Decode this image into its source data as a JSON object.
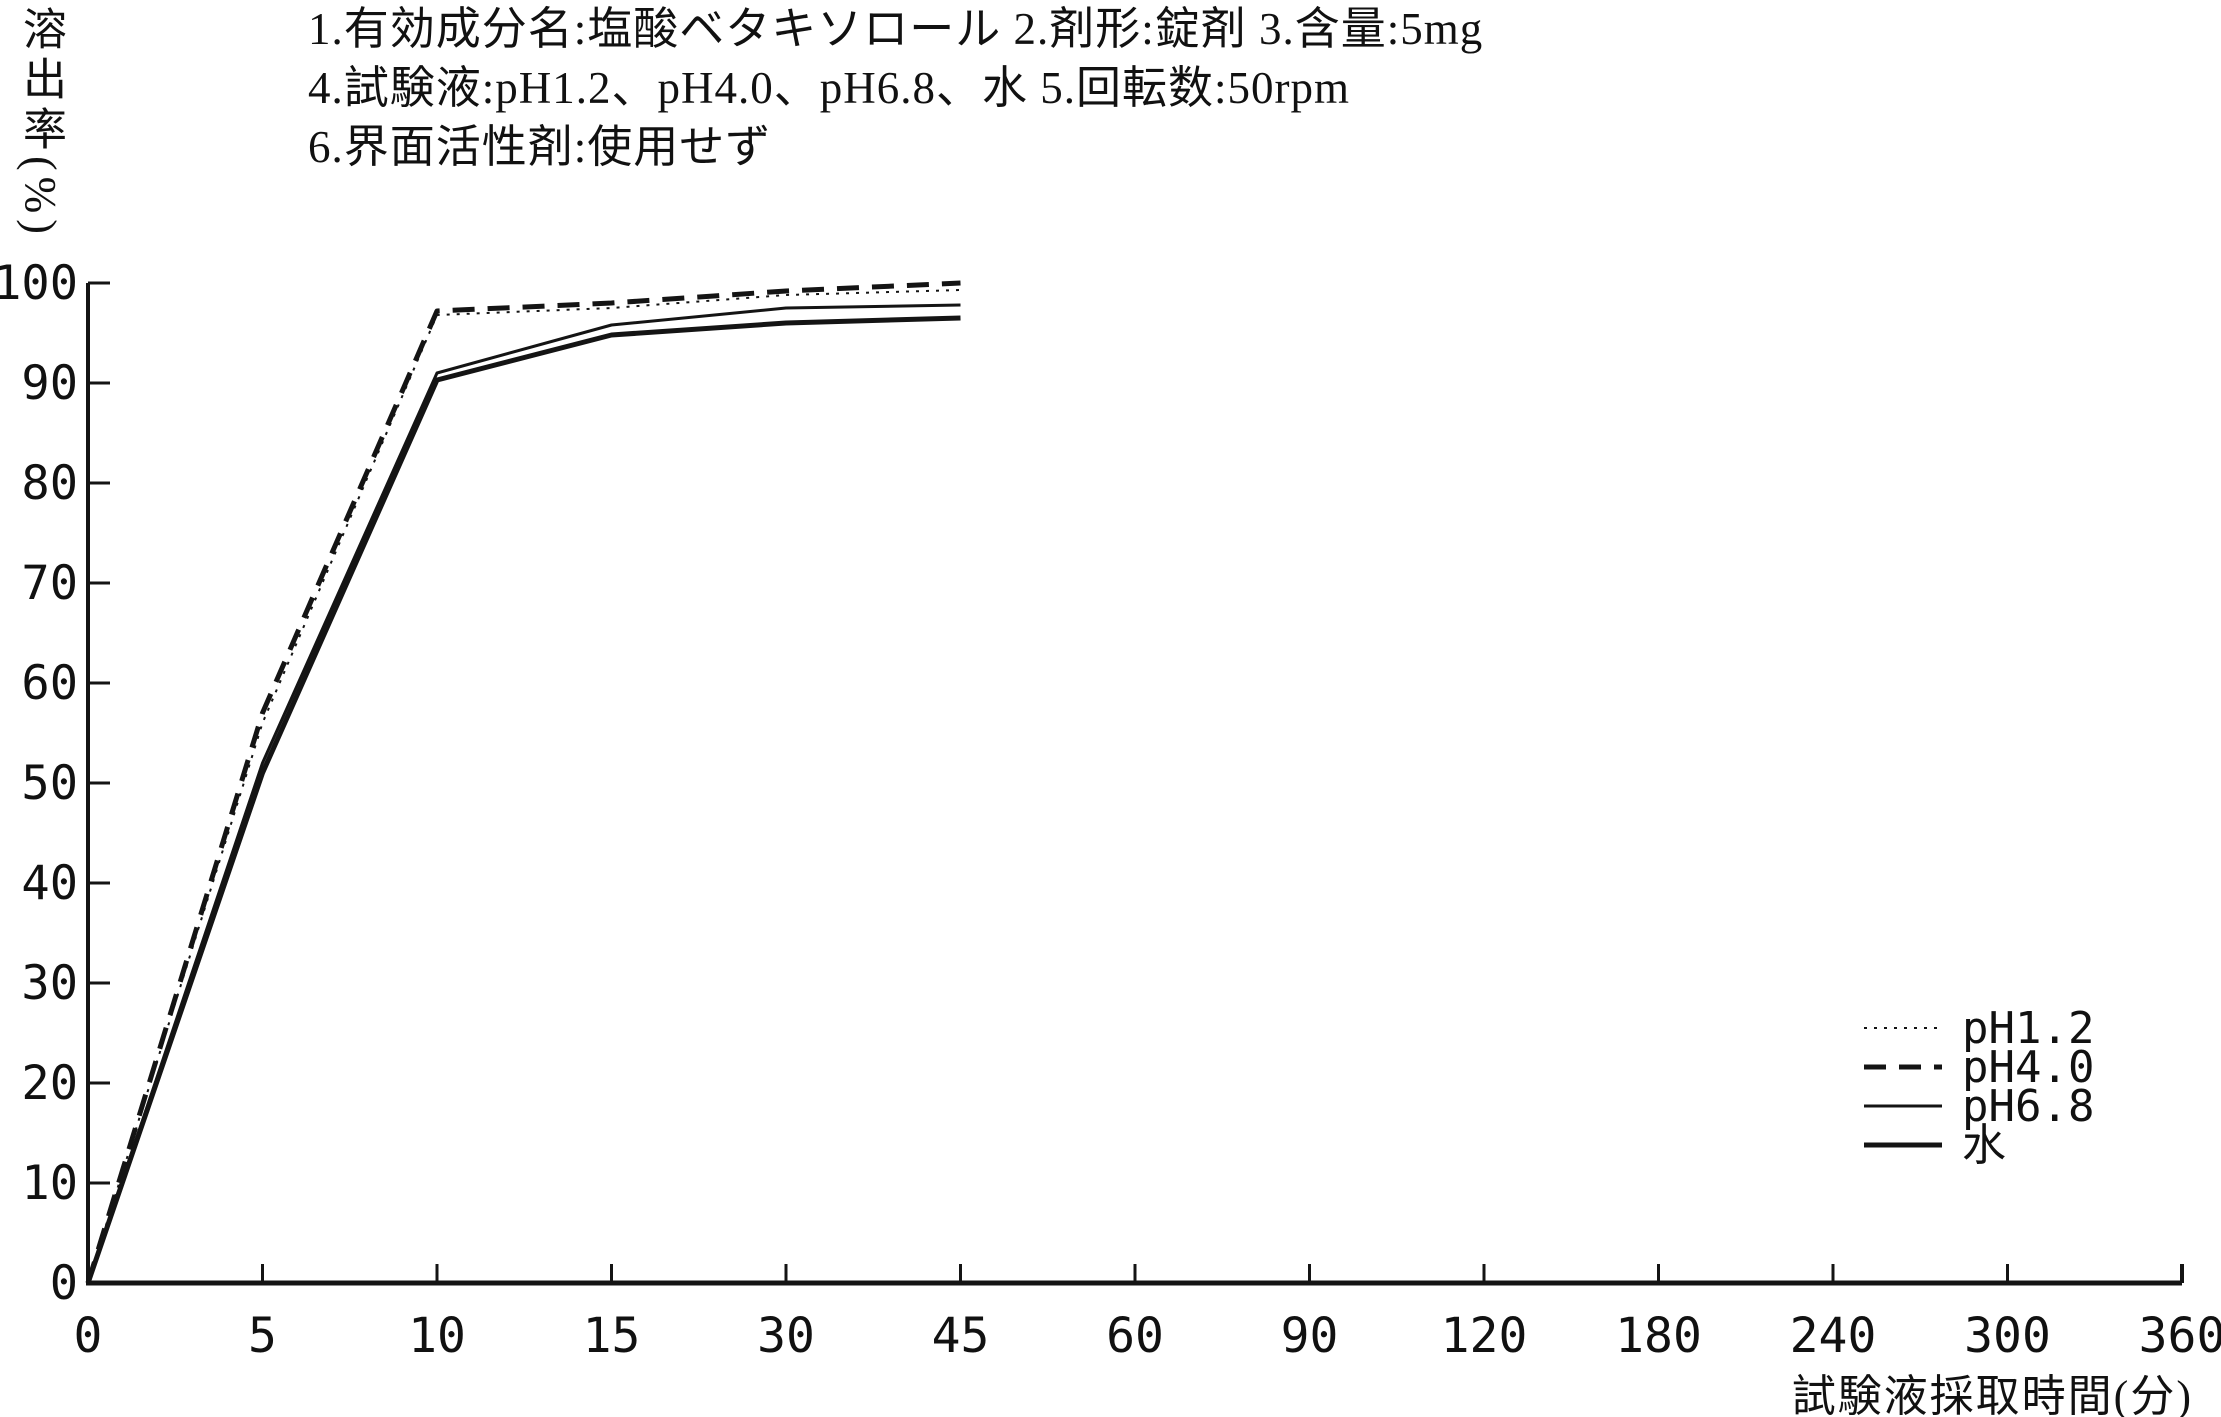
{
  "colors": {
    "ink": "#141414",
    "background": "#ffffff"
  },
  "header": {
    "line1": "1.有効成分名:塩酸ベタキソロール  2.剤形:錠剤  3.含量:5mg",
    "line2": "4.試験液:pH1.2、pH4.0、pH6.8、水  5.回転数:50rpm",
    "line3": "6.界面活性剤:使用せず"
  },
  "chart_data": {
    "type": "line",
    "title": "",
    "xlabel": "試験液採取時間(分)",
    "ylabel": "溶出率(%)",
    "x_scale": "categorical-even",
    "x_tick_labels": [
      "0",
      "5",
      "10",
      "15",
      "30",
      "45",
      "60",
      "90",
      "120",
      "180",
      "240",
      "300",
      "360"
    ],
    "x_categories": [
      0,
      5,
      10,
      15,
      30,
      45,
      60,
      90,
      120,
      180,
      240,
      300,
      360
    ],
    "y_ticks": [
      0,
      10,
      20,
      30,
      40,
      50,
      60,
      70,
      80,
      90,
      100
    ],
    "y_tick_labels": [
      "0",
      "10",
      "20",
      "30",
      "40",
      "50",
      "60",
      "70",
      "80",
      "90",
      "100"
    ],
    "ylim": [
      0,
      100
    ],
    "grid": false,
    "legend_position": "right-middle",
    "series": [
      {
        "name": "pH1.2",
        "line_style": "dotted",
        "stroke_width": 2,
        "dash": "3 7",
        "x": [
          0,
          5,
          10,
          15,
          30,
          45
        ],
        "values": [
          0,
          56,
          96.8,
          97.5,
          98.8,
          99.3
        ]
      },
      {
        "name": "pH4.0",
        "line_style": "dashed",
        "stroke_width": 5,
        "dash": "22 13",
        "x": [
          0,
          5,
          10,
          15,
          30,
          45
        ],
        "values": [
          0,
          57,
          97.2,
          98,
          99.2,
          100
        ]
      },
      {
        "name": "pH6.8",
        "line_style": "solid-thin",
        "stroke_width": 3,
        "dash": "",
        "x": [
          0,
          5,
          10,
          15,
          30,
          45
        ],
        "values": [
          0,
          52,
          91,
          95.8,
          97.5,
          97.8
        ]
      },
      {
        "name": "水",
        "line_style": "solid-thick",
        "stroke_width": 5,
        "dash": "",
        "x": [
          0,
          5,
          10,
          15,
          30,
          45
        ],
        "values": [
          0,
          51,
          90.3,
          94.8,
          96,
          96.5
        ]
      }
    ]
  }
}
